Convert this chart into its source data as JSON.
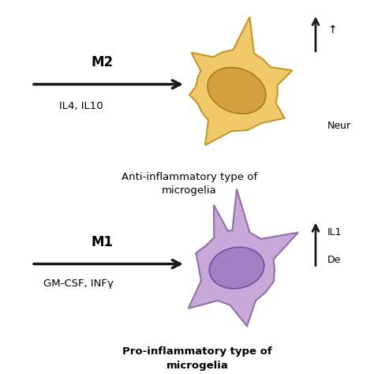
{
  "background_color": "#ffffff",
  "arrow_color": "#1a1a1a",
  "m2_label": "M2",
  "m1_label": "M1",
  "il4_il10_label": "IL4, IL10",
  "gmcsf_infy_label": "GM-CSF, INFγ",
  "anti_label_line1": "Anti-inflammatory type of",
  "anti_label_line2": "microgelia",
  "pro_label_line1": "Pro-inflammatory type of",
  "pro_label_line2": "microgelia",
  "neuro_label": "Neur",
  "il1_label": "IL1",
  "de_label": "De",
  "yellow_cell_body": "#f0c96a",
  "yellow_cell_outline": "#c8962a",
  "yellow_nucleus_body": "#d4a040",
  "yellow_nucleus_outline": "#b07820",
  "purple_cell_body": "#c8a8d8",
  "purple_cell_outline": "#9070a8",
  "purple_nucleus_body": "#a080c0",
  "purple_nucleus_outline": "#7050a0",
  "up_arrow_color": "#1a1a1a",
  "font_size_label": 10,
  "font_size_m": 12,
  "font_size_cytokine": 9.5,
  "font_size_right": 9
}
